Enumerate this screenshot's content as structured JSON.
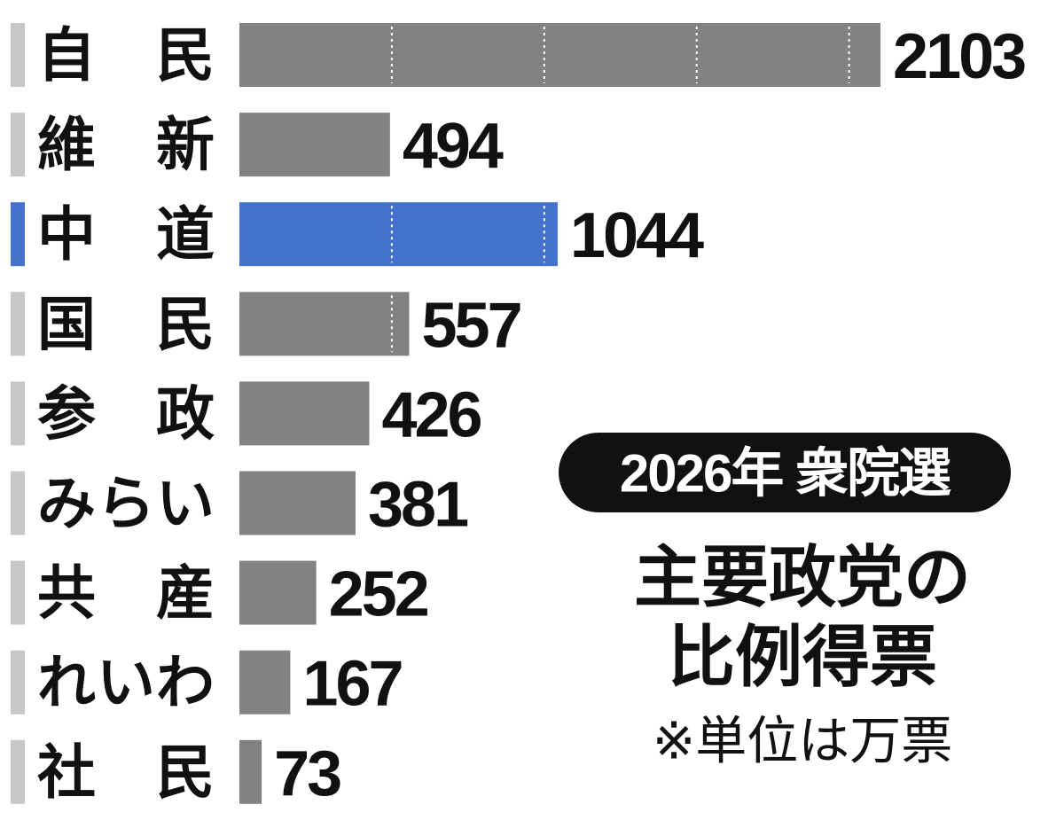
{
  "chart_data": {
    "type": "bar",
    "orientation": "horizontal",
    "subtitle": "2026年 衆院選",
    "title": [
      "主要政党の",
      "比例得票"
    ],
    "note": "※単位は万票",
    "categories": [
      "自　民",
      "維　新",
      "中　道",
      "国　民",
      "参　政",
      "みらい",
      "共　産",
      "れいわ",
      "社　民"
    ],
    "values": [
      2103,
      494,
      1044,
      557,
      426,
      381,
      252,
      167,
      73
    ],
    "colors": [
      "#828282",
      "#828282",
      "#4472cc",
      "#828282",
      "#828282",
      "#828282",
      "#828282",
      "#828282",
      "#828282"
    ],
    "xlim": [
      0,
      2100
    ],
    "xticks": [
      500,
      1000,
      1500,
      2000
    ],
    "grid": true
  }
}
